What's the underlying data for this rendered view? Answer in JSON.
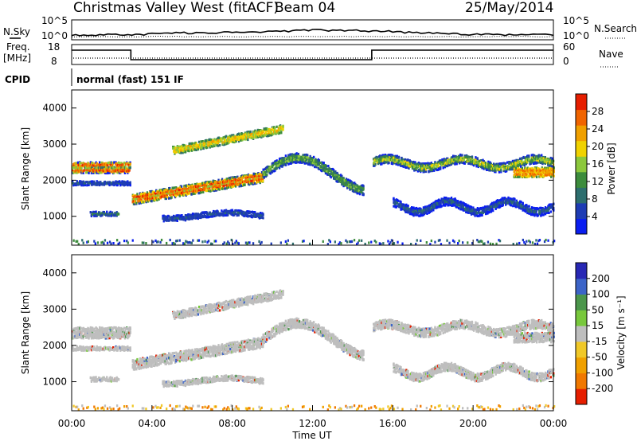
{
  "header": {
    "title": "Christmas Valley West (fitACF)",
    "beam": "Beam 04",
    "date": "25/May/2014"
  },
  "strips": {
    "nsky_label": "N.Sky",
    "nsky_top_tick": "10^5",
    "nsky_bottom_tick": "10^0",
    "nsky_right_top_tick": "10^5",
    "nsky_right_bottom_tick": "10^0",
    "nsearch_label": "N.Search",
    "freq_label": "Freq.",
    "freq_unit": "[MHz]",
    "freq_top_tick": "18",
    "freq_bottom_tick": "8",
    "nave_label": "Nave",
    "nave_top_tick": "60",
    "nave_bottom_tick": "0",
    "cpid_label": "CPID",
    "cpid_value": "normal (fast) 151 IF"
  },
  "colors": {
    "power": [
      "#0a1ef0",
      "#1e3cb4",
      "#2d6e6e",
      "#3c8c3c",
      "#8cc83c",
      "#f0d200",
      "#f0a000",
      "#f06400",
      "#e61e00"
    ],
    "velocity": [
      "#2828b4",
      "#3c64c8",
      "#4b964b",
      "#78c83c",
      "#bebebe",
      "#f0c828",
      "#f0a000",
      "#f07800",
      "#e61e00"
    ]
  },
  "chart_data": [
    {
      "type": "heatmap",
      "name": "power",
      "ylabel": "Slant Range [km]",
      "yticks": [
        "1000",
        "2000",
        "3000",
        "4000"
      ],
      "ylim": [
        200,
        4500
      ],
      "colorbar_label": "Power [dB]",
      "colorbar_ticks": [
        "4",
        "8",
        "12",
        "16",
        "20",
        "24",
        "28"
      ],
      "color_range": [
        0,
        32
      ]
    },
    {
      "type": "heatmap",
      "name": "velocity",
      "ylabel": "Slant Range [km]",
      "yticks": [
        "1000",
        "2000",
        "3000",
        "4000"
      ],
      "ylim": [
        200,
        4500
      ],
      "xlabel": "Time UT",
      "xticks": [
        "00:00",
        "04:00",
        "08:00",
        "12:00",
        "16:00",
        "20:00",
        "00:00"
      ],
      "xlim_hours": [
        0,
        24
      ],
      "colorbar_label": "Velocity [m s⁻¹]",
      "colorbar_ticks": [
        "200",
        "100",
        "50",
        "15",
        "-15",
        "-50",
        "-100",
        "-200"
      ]
    }
  ]
}
